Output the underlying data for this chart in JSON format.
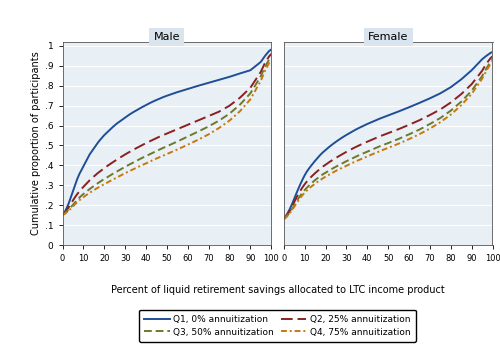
{
  "panels": [
    "Male",
    "Female"
  ],
  "ylabel": "Cumulative proportion of participants",
  "xlabel": "Percent of liquid retirement savings allocated to LTC income product",
  "yticks": [
    0,
    0.1,
    0.2,
    0.3,
    0.4,
    0.5,
    0.6,
    0.7,
    0.8,
    0.9,
    1.0
  ],
  "yticklabels": [
    "0",
    ".1",
    ".2",
    ".3",
    ".4",
    ".5",
    ".6",
    ".7",
    ".8",
    ".9",
    "1"
  ],
  "xticks": [
    0,
    10,
    20,
    30,
    40,
    50,
    60,
    70,
    80,
    90,
    100
  ],
  "ylim": [
    0,
    1.02
  ],
  "xlim": [
    0,
    100
  ],
  "background_panel_title": "#d9e4ef",
  "background_plot": "#e8eff5",
  "grid_color": "#ffffff",
  "series": [
    {
      "label": "Q1, 0% annuitization",
      "color": "#1f4e96",
      "linestyle": "solid",
      "linewidth": 1.4
    },
    {
      "label": "Q2, 25% annuitization",
      "color": "#8b2020",
      "linestyle": "dashed",
      "linewidth": 1.4
    },
    {
      "label": "Q3, 50% annuitization",
      "color": "#6b7a2a",
      "linestyle": "dashed",
      "linewidth": 1.4
    },
    {
      "label": "Q4, 75% annuitization",
      "color": "#c8780a",
      "linestyle": "dashdot",
      "linewidth": 1.4
    }
  ],
  "male_curves": {
    "Q1": [
      [
        0,
        0.15
      ],
      [
        1,
        0.165
      ],
      [
        2,
        0.185
      ],
      [
        3,
        0.21
      ],
      [
        4,
        0.24
      ],
      [
        5,
        0.27
      ],
      [
        6,
        0.3
      ],
      [
        7,
        0.33
      ],
      [
        8,
        0.355
      ],
      [
        9,
        0.375
      ],
      [
        10,
        0.395
      ],
      [
        11,
        0.415
      ],
      [
        12,
        0.435
      ],
      [
        13,
        0.455
      ],
      [
        14,
        0.47
      ],
      [
        15,
        0.485
      ],
      [
        16,
        0.5
      ],
      [
        17,
        0.515
      ],
      [
        18,
        0.528
      ],
      [
        19,
        0.54
      ],
      [
        20,
        0.552
      ],
      [
        22,
        0.572
      ],
      [
        24,
        0.592
      ],
      [
        26,
        0.61
      ],
      [
        28,
        0.625
      ],
      [
        30,
        0.64
      ],
      [
        32,
        0.655
      ],
      [
        34,
        0.668
      ],
      [
        36,
        0.68
      ],
      [
        38,
        0.692
      ],
      [
        40,
        0.703
      ],
      [
        42,
        0.714
      ],
      [
        44,
        0.724
      ],
      [
        46,
        0.733
      ],
      [
        48,
        0.742
      ],
      [
        50,
        0.75
      ],
      [
        55,
        0.768
      ],
      [
        60,
        0.784
      ],
      [
        65,
        0.8
      ],
      [
        70,
        0.815
      ],
      [
        75,
        0.83
      ],
      [
        80,
        0.845
      ],
      [
        85,
        0.862
      ],
      [
        90,
        0.878
      ],
      [
        95,
        0.92
      ],
      [
        97,
        0.95
      ],
      [
        99,
        0.975
      ],
      [
        100,
        0.982
      ]
    ],
    "Q2": [
      [
        0,
        0.15
      ],
      [
        1,
        0.16
      ],
      [
        2,
        0.175
      ],
      [
        3,
        0.19
      ],
      [
        4,
        0.207
      ],
      [
        5,
        0.224
      ],
      [
        6,
        0.24
      ],
      [
        7,
        0.255
      ],
      [
        8,
        0.268
      ],
      [
        9,
        0.28
      ],
      [
        10,
        0.292
      ],
      [
        11,
        0.303
      ],
      [
        12,
        0.314
      ],
      [
        13,
        0.325
      ],
      [
        14,
        0.334
      ],
      [
        15,
        0.344
      ],
      [
        16,
        0.353
      ],
      [
        17,
        0.362
      ],
      [
        18,
        0.37
      ],
      [
        19,
        0.378
      ],
      [
        20,
        0.386
      ],
      [
        22,
        0.401
      ],
      [
        24,
        0.415
      ],
      [
        26,
        0.429
      ],
      [
        28,
        0.442
      ],
      [
        30,
        0.455
      ],
      [
        32,
        0.467
      ],
      [
        34,
        0.479
      ],
      [
        36,
        0.49
      ],
      [
        38,
        0.501
      ],
      [
        40,
        0.512
      ],
      [
        42,
        0.522
      ],
      [
        44,
        0.532
      ],
      [
        46,
        0.542
      ],
      [
        48,
        0.551
      ],
      [
        50,
        0.56
      ],
      [
        55,
        0.582
      ],
      [
        60,
        0.604
      ],
      [
        65,
        0.626
      ],
      [
        70,
        0.648
      ],
      [
        75,
        0.67
      ],
      [
        80,
        0.7
      ],
      [
        85,
        0.74
      ],
      [
        90,
        0.79
      ],
      [
        95,
        0.87
      ],
      [
        97,
        0.915
      ],
      [
        99,
        0.948
      ],
      [
        100,
        0.96
      ]
    ],
    "Q3": [
      [
        0,
        0.15
      ],
      [
        1,
        0.158
      ],
      [
        2,
        0.168
      ],
      [
        3,
        0.178
      ],
      [
        4,
        0.19
      ],
      [
        5,
        0.202
      ],
      [
        6,
        0.214
      ],
      [
        7,
        0.226
      ],
      [
        8,
        0.237
      ],
      [
        9,
        0.247
      ],
      [
        10,
        0.256
      ],
      [
        11,
        0.265
      ],
      [
        12,
        0.273
      ],
      [
        13,
        0.281
      ],
      [
        14,
        0.289
      ],
      [
        15,
        0.296
      ],
      [
        16,
        0.304
      ],
      [
        17,
        0.311
      ],
      [
        18,
        0.318
      ],
      [
        19,
        0.325
      ],
      [
        20,
        0.331
      ],
      [
        22,
        0.344
      ],
      [
        24,
        0.357
      ],
      [
        26,
        0.369
      ],
      [
        28,
        0.381
      ],
      [
        30,
        0.393
      ],
      [
        32,
        0.404
      ],
      [
        34,
        0.415
      ],
      [
        36,
        0.426
      ],
      [
        38,
        0.437
      ],
      [
        40,
        0.447
      ],
      [
        42,
        0.457
      ],
      [
        44,
        0.467
      ],
      [
        46,
        0.477
      ],
      [
        48,
        0.487
      ],
      [
        50,
        0.496
      ],
      [
        55,
        0.52
      ],
      [
        60,
        0.545
      ],
      [
        65,
        0.57
      ],
      [
        70,
        0.596
      ],
      [
        75,
        0.625
      ],
      [
        80,
        0.66
      ],
      [
        85,
        0.705
      ],
      [
        90,
        0.762
      ],
      [
        95,
        0.848
      ],
      [
        97,
        0.895
      ],
      [
        99,
        0.932
      ],
      [
        100,
        0.945
      ]
    ],
    "Q4": [
      [
        0,
        0.15
      ],
      [
        1,
        0.156
      ],
      [
        2,
        0.164
      ],
      [
        3,
        0.173
      ],
      [
        4,
        0.183
      ],
      [
        5,
        0.194
      ],
      [
        6,
        0.205
      ],
      [
        7,
        0.215
      ],
      [
        8,
        0.224
      ],
      [
        9,
        0.232
      ],
      [
        10,
        0.24
      ],
      [
        11,
        0.248
      ],
      [
        12,
        0.255
      ],
      [
        13,
        0.262
      ],
      [
        14,
        0.269
      ],
      [
        15,
        0.275
      ],
      [
        16,
        0.282
      ],
      [
        17,
        0.288
      ],
      [
        18,
        0.294
      ],
      [
        19,
        0.3
      ],
      [
        20,
        0.305
      ],
      [
        22,
        0.317
      ],
      [
        24,
        0.328
      ],
      [
        26,
        0.339
      ],
      [
        28,
        0.35
      ],
      [
        30,
        0.361
      ],
      [
        32,
        0.371
      ],
      [
        34,
        0.381
      ],
      [
        36,
        0.391
      ],
      [
        38,
        0.401
      ],
      [
        40,
        0.41
      ],
      [
        42,
        0.42
      ],
      [
        44,
        0.43
      ],
      [
        46,
        0.439
      ],
      [
        48,
        0.448
      ],
      [
        50,
        0.457
      ],
      [
        55,
        0.48
      ],
      [
        60,
        0.504
      ],
      [
        65,
        0.529
      ],
      [
        70,
        0.556
      ],
      [
        75,
        0.588
      ],
      [
        80,
        0.625
      ],
      [
        85,
        0.672
      ],
      [
        90,
        0.732
      ],
      [
        95,
        0.825
      ],
      [
        97,
        0.875
      ],
      [
        99,
        0.915
      ],
      [
        100,
        0.928
      ]
    ]
  },
  "female_curves": {
    "Q1": [
      [
        0,
        0.13
      ],
      [
        1,
        0.145
      ],
      [
        2,
        0.163
      ],
      [
        3,
        0.183
      ],
      [
        4,
        0.207
      ],
      [
        5,
        0.232
      ],
      [
        6,
        0.258
      ],
      [
        7,
        0.283
      ],
      [
        8,
        0.307
      ],
      [
        9,
        0.329
      ],
      [
        10,
        0.35
      ],
      [
        11,
        0.368
      ],
      [
        12,
        0.383
      ],
      [
        13,
        0.397
      ],
      [
        14,
        0.41
      ],
      [
        15,
        0.423
      ],
      [
        16,
        0.435
      ],
      [
        17,
        0.447
      ],
      [
        18,
        0.458
      ],
      [
        19,
        0.468
      ],
      [
        20,
        0.477
      ],
      [
        22,
        0.495
      ],
      [
        24,
        0.511
      ],
      [
        26,
        0.526
      ],
      [
        28,
        0.54
      ],
      [
        30,
        0.553
      ],
      [
        32,
        0.565
      ],
      [
        34,
        0.577
      ],
      [
        36,
        0.588
      ],
      [
        38,
        0.598
      ],
      [
        40,
        0.608
      ],
      [
        42,
        0.617
      ],
      [
        44,
        0.626
      ],
      [
        46,
        0.635
      ],
      [
        48,
        0.643
      ],
      [
        50,
        0.651
      ],
      [
        55,
        0.671
      ],
      [
        60,
        0.692
      ],
      [
        65,
        0.714
      ],
      [
        70,
        0.737
      ],
      [
        75,
        0.762
      ],
      [
        80,
        0.793
      ],
      [
        85,
        0.832
      ],
      [
        90,
        0.878
      ],
      [
        95,
        0.933
      ],
      [
        97,
        0.95
      ],
      [
        99,
        0.965
      ],
      [
        100,
        0.97
      ]
    ],
    "Q2": [
      [
        0,
        0.13
      ],
      [
        1,
        0.142
      ],
      [
        2,
        0.157
      ],
      [
        3,
        0.174
      ],
      [
        4,
        0.194
      ],
      [
        5,
        0.215
      ],
      [
        6,
        0.236
      ],
      [
        7,
        0.256
      ],
      [
        8,
        0.274
      ],
      [
        9,
        0.29
      ],
      [
        10,
        0.305
      ],
      [
        11,
        0.318
      ],
      [
        12,
        0.33
      ],
      [
        13,
        0.341
      ],
      [
        14,
        0.351
      ],
      [
        15,
        0.361
      ],
      [
        16,
        0.37
      ],
      [
        17,
        0.379
      ],
      [
        18,
        0.388
      ],
      [
        19,
        0.396
      ],
      [
        20,
        0.403
      ],
      [
        22,
        0.418
      ],
      [
        24,
        0.431
      ],
      [
        26,
        0.444
      ],
      [
        28,
        0.456
      ],
      [
        30,
        0.468
      ],
      [
        32,
        0.479
      ],
      [
        34,
        0.49
      ],
      [
        36,
        0.5
      ],
      [
        38,
        0.51
      ],
      [
        40,
        0.519
      ],
      [
        42,
        0.528
      ],
      [
        44,
        0.537
      ],
      [
        46,
        0.546
      ],
      [
        48,
        0.554
      ],
      [
        50,
        0.562
      ],
      [
        55,
        0.582
      ],
      [
        60,
        0.604
      ],
      [
        65,
        0.627
      ],
      [
        70,
        0.653
      ],
      [
        75,
        0.681
      ],
      [
        80,
        0.716
      ],
      [
        85,
        0.758
      ],
      [
        90,
        0.808
      ],
      [
        95,
        0.875
      ],
      [
        97,
        0.91
      ],
      [
        99,
        0.938
      ],
      [
        100,
        0.948
      ]
    ],
    "Q3": [
      [
        0,
        0.13
      ],
      [
        1,
        0.14
      ],
      [
        2,
        0.152
      ],
      [
        3,
        0.166
      ],
      [
        4,
        0.182
      ],
      [
        5,
        0.199
      ],
      [
        6,
        0.217
      ],
      [
        7,
        0.234
      ],
      [
        8,
        0.249
      ],
      [
        9,
        0.263
      ],
      [
        10,
        0.276
      ],
      [
        11,
        0.287
      ],
      [
        12,
        0.298
      ],
      [
        13,
        0.308
      ],
      [
        14,
        0.317
      ],
      [
        15,
        0.326
      ],
      [
        16,
        0.334
      ],
      [
        17,
        0.342
      ],
      [
        18,
        0.35
      ],
      [
        19,
        0.357
      ],
      [
        20,
        0.363
      ],
      [
        22,
        0.376
      ],
      [
        24,
        0.388
      ],
      [
        26,
        0.399
      ],
      [
        28,
        0.41
      ],
      [
        30,
        0.421
      ],
      [
        32,
        0.431
      ],
      [
        34,
        0.441
      ],
      [
        36,
        0.451
      ],
      [
        38,
        0.46
      ],
      [
        40,
        0.469
      ],
      [
        42,
        0.478
      ],
      [
        44,
        0.487
      ],
      [
        46,
        0.496
      ],
      [
        48,
        0.504
      ],
      [
        50,
        0.512
      ],
      [
        55,
        0.533
      ],
      [
        60,
        0.556
      ],
      [
        65,
        0.58
      ],
      [
        70,
        0.608
      ],
      [
        75,
        0.638
      ],
      [
        80,
        0.675
      ],
      [
        85,
        0.72
      ],
      [
        90,
        0.775
      ],
      [
        95,
        0.848
      ],
      [
        97,
        0.886
      ],
      [
        99,
        0.92
      ],
      [
        100,
        0.932
      ]
    ],
    "Q4": [
      [
        0,
        0.13
      ],
      [
        1,
        0.138
      ],
      [
        2,
        0.149
      ],
      [
        3,
        0.161
      ],
      [
        4,
        0.176
      ],
      [
        5,
        0.192
      ],
      [
        6,
        0.208
      ],
      [
        7,
        0.224
      ],
      [
        8,
        0.238
      ],
      [
        9,
        0.251
      ],
      [
        10,
        0.263
      ],
      [
        11,
        0.273
      ],
      [
        12,
        0.283
      ],
      [
        13,
        0.292
      ],
      [
        14,
        0.3
      ],
      [
        15,
        0.308
      ],
      [
        16,
        0.316
      ],
      [
        17,
        0.323
      ],
      [
        18,
        0.33
      ],
      [
        19,
        0.337
      ],
      [
        20,
        0.343
      ],
      [
        22,
        0.355
      ],
      [
        24,
        0.367
      ],
      [
        26,
        0.378
      ],
      [
        28,
        0.388
      ],
      [
        30,
        0.398
      ],
      [
        32,
        0.408
      ],
      [
        34,
        0.418
      ],
      [
        36,
        0.427
      ],
      [
        38,
        0.436
      ],
      [
        40,
        0.445
      ],
      [
        42,
        0.454
      ],
      [
        44,
        0.463
      ],
      [
        46,
        0.471
      ],
      [
        48,
        0.48
      ],
      [
        50,
        0.488
      ],
      [
        55,
        0.509
      ],
      [
        60,
        0.532
      ],
      [
        65,
        0.557
      ],
      [
        70,
        0.585
      ],
      [
        75,
        0.617
      ],
      [
        80,
        0.655
      ],
      [
        85,
        0.702
      ],
      [
        90,
        0.759
      ],
      [
        95,
        0.835
      ],
      [
        97,
        0.874
      ],
      [
        99,
        0.909
      ],
      [
        100,
        0.921
      ]
    ]
  }
}
